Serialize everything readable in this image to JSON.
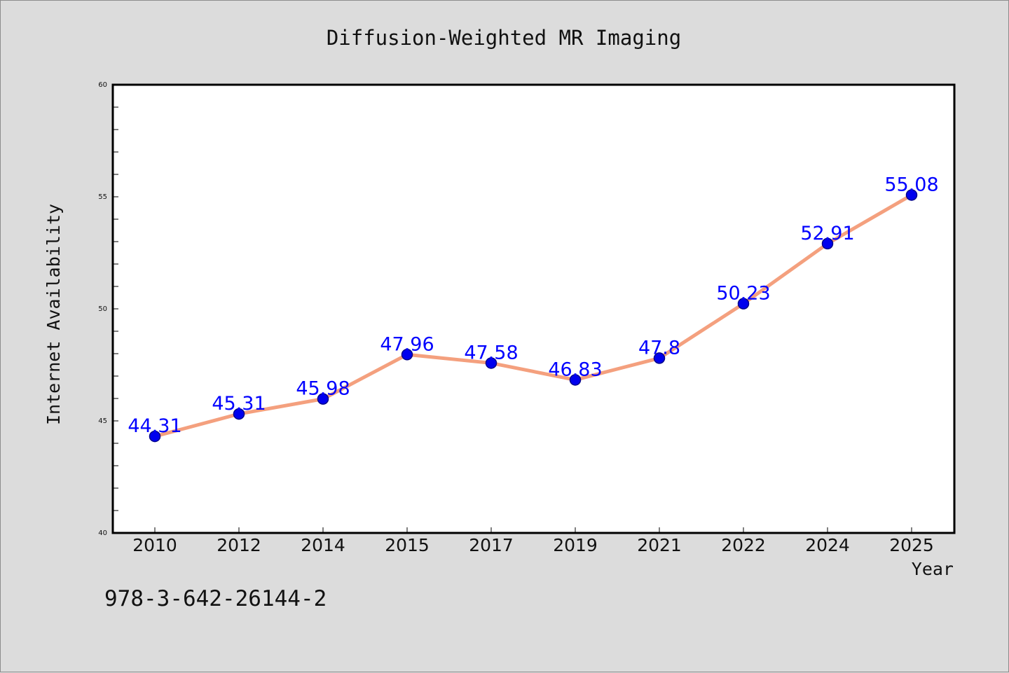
{
  "chart_data": {
    "type": "line",
    "title": "Diffusion-Weighted MR Imaging",
    "xlabel": "Year",
    "ylabel": "Internet Availability",
    "categories": [
      "2010",
      "2012",
      "2014",
      "2015",
      "2017",
      "2019",
      "2021",
      "2022",
      "2024",
      "2025"
    ],
    "series": [
      {
        "values": [
          44.31,
          45.31,
          45.98,
          47.96,
          47.58,
          46.83,
          47.8,
          50.23,
          52.91,
          55.08
        ],
        "labels": [
          "44.31",
          "45.31",
          "45.98",
          "47.96",
          "47.58",
          "46.83",
          "47.8",
          "50.23",
          "52.91",
          "55.08"
        ]
      }
    ],
    "ylim": [
      40,
      60
    ],
    "yticks": [
      "40",
      "45",
      "50",
      "55",
      "60"
    ],
    "grid": false,
    "colors": {
      "line": "#f4a07e",
      "marker": "#0000ee",
      "marker_edge": "#00008b",
      "data_label": "#0000ff",
      "plot_background": "#ffffff",
      "figure_background": "#dcdcdc"
    }
  },
  "annotation": "978-3-642-26144-2"
}
